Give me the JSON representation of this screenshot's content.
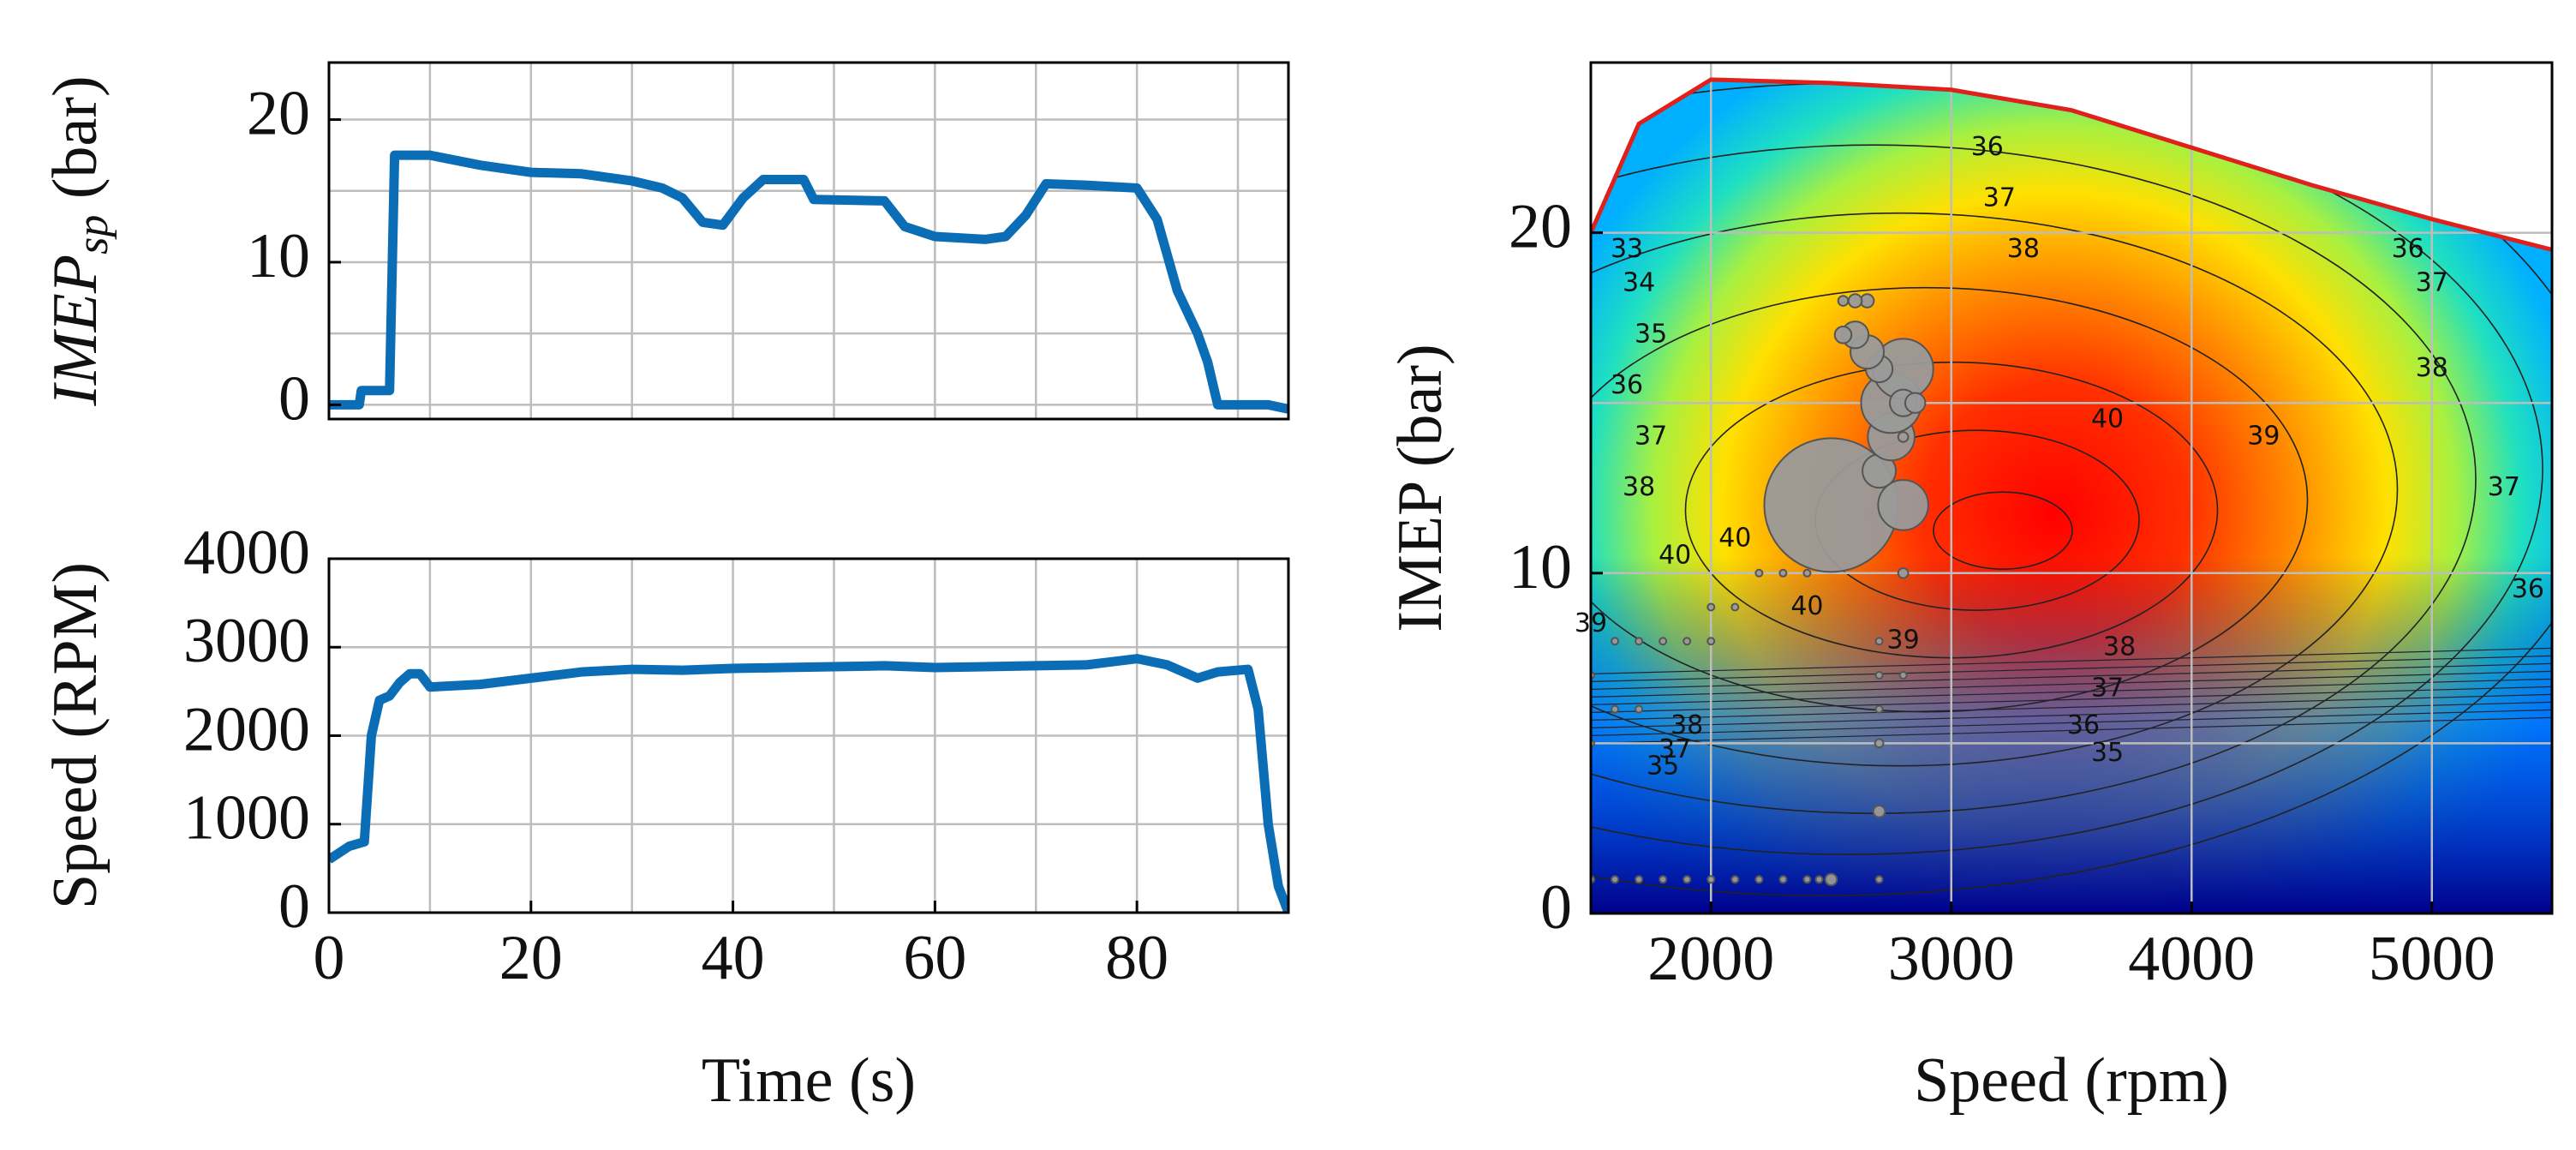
{
  "chart_data": [
    {
      "type": "line",
      "y_label": {
        "main": "IMEP",
        "sub": "sp",
        "unit": " (bar)"
      },
      "x": [
        0,
        3,
        3.2,
        6,
        6.5,
        10,
        15,
        20,
        25,
        30,
        33,
        35,
        37,
        39,
        41,
        43,
        47,
        48,
        55,
        57,
        60,
        65,
        67,
        69,
        71,
        75,
        80,
        82,
        84,
        86,
        87,
        88,
        93,
        95
      ],
      "values": [
        0,
        0,
        1,
        1,
        17.5,
        17.5,
        16.8,
        16.3,
        16.2,
        15.7,
        15.2,
        14.5,
        12.8,
        12.6,
        14.5,
        15.8,
        15.8,
        14.4,
        14.3,
        12.5,
        11.8,
        11.6,
        11.8,
        13.3,
        15.5,
        15.4,
        15.2,
        13,
        8,
        5,
        3,
        0,
        0,
        -0.3
      ],
      "color": "#0b6db5",
      "xlim": [
        0,
        95
      ],
      "ylim": [
        -1,
        24
      ],
      "yticks": [
        0,
        10,
        20
      ],
      "yminor": [
        5,
        15
      ],
      "xminor": [
        10,
        20,
        30,
        40,
        50,
        60,
        70,
        80,
        90
      ],
      "grid": true
    },
    {
      "type": "line",
      "y_label": "Speed (RPM)",
      "x_label": "Time (s)",
      "x": [
        0,
        2,
        3.5,
        4.2,
        5,
        6,
        7,
        8,
        9,
        10,
        15,
        20,
        25,
        30,
        35,
        40,
        45,
        50,
        55,
        60,
        65,
        70,
        75,
        80,
        83,
        86,
        88,
        91,
        92,
        93,
        94,
        95
      ],
      "values": [
        600,
        750,
        800,
        2000,
        2400,
        2450,
        2600,
        2700,
        2700,
        2550,
        2580,
        2650,
        2720,
        2750,
        2740,
        2760,
        2770,
        2780,
        2790,
        2770,
        2780,
        2790,
        2800,
        2870,
        2800,
        2650,
        2720,
        2750,
        2300,
        1000,
        300,
        0
      ],
      "color": "#0b6db5",
      "xlim": [
        0,
        95
      ],
      "ylim": [
        0,
        4000
      ],
      "yticks": [
        0,
        1000,
        2000,
        3000,
        4000
      ],
      "xticks": [
        0,
        20,
        40,
        60,
        80
      ],
      "xminor": [
        10,
        30,
        50,
        70,
        90
      ],
      "grid": true
    },
    {
      "type": "contour",
      "x_label": "Speed (rpm)",
      "y_label": "IMEP (bar)",
      "xlim": [
        1500,
        5500
      ],
      "ylim": [
        0,
        25
      ],
      "xticks": [
        2000,
        3000,
        4000,
        5000
      ],
      "yticks": [
        0,
        10,
        20
      ],
      "yminor": [
        5,
        15
      ],
      "grid": true,
      "boundary": {
        "color": "#e0201b",
        "x": [
          1500,
          1700,
          2000,
          2500,
          3000,
          3500,
          4000,
          4500,
          5000,
          5500
        ],
        "y": [
          20,
          23.2,
          24.5,
          24.4,
          24.2,
          23.6,
          22.5,
          21.4,
          20.4,
          19.5
        ]
      },
      "bubbles": {
        "color": "#9a9a9a",
        "x": [
          2500,
          2800,
          2700,
          2750,
          2750,
          2800,
          2800,
          2850,
          2700,
          2650,
          2600,
          2550,
          2550,
          2650,
          2600,
          2800,
          2800,
          2700,
          2700,
          2800,
          2700,
          2700,
          2700,
          2700,
          2500,
          2450,
          2400,
          2300,
          2200,
          2100,
          2000,
          1900,
          1800,
          1700,
          1600,
          1500,
          2000,
          1900,
          1800,
          1700,
          1600,
          1500,
          1600,
          1700,
          1500,
          2100,
          2000,
          2200,
          2300,
          2400
        ],
        "y": [
          12,
          12,
          13,
          14,
          15,
          16,
          15,
          15,
          16,
          16.5,
          17,
          17,
          18,
          18,
          18,
          14,
          10,
          8,
          7,
          7,
          6,
          5,
          3,
          1,
          1,
          1,
          1,
          1,
          1,
          1,
          1,
          1,
          1,
          1,
          1,
          1,
          8,
          8,
          8,
          8,
          8,
          7,
          6,
          6,
          5,
          9,
          9,
          10,
          10,
          10
        ],
        "size": [
          40,
          15,
          10,
          14,
          18,
          18,
          8,
          6,
          8,
          10,
          8,
          5,
          3,
          4,
          4,
          3,
          3,
          2,
          2,
          2,
          2,
          2.5,
          3.5,
          2,
          3.5,
          2,
          1,
          1,
          1,
          1,
          1,
          1,
          1,
          1,
          1,
          1,
          2,
          1.5,
          1.5,
          1.5,
          1.5,
          1.5,
          1.5,
          1.5,
          1.5,
          1.5,
          1.5,
          1.5,
          1.5,
          1
        ]
      },
      "contour_labels": {
        "x": [
          3150,
          3200,
          3300,
          3650,
          4300,
          4900,
          5000,
          5000,
          5300,
          5400,
          3700,
          3650,
          3550,
          3650,
          1650,
          1700,
          1750,
          1650,
          1750,
          1700,
          1850,
          1500,
          2100,
          2400,
          2800,
          1900,
          1850,
          1800
        ],
        "y": [
          22.5,
          21,
          19.5,
          14.5,
          14,
          19.5,
          18.5,
          16,
          12.5,
          9.5,
          7.8,
          6.6,
          5.5,
          4.7,
          19.5,
          18.5,
          17,
          15.5,
          14,
          12.5,
          10.5,
          8.5,
          11,
          9,
          8,
          5.5,
          4.8,
          4.3
        ],
        "values": [
          36,
          37,
          38,
          40,
          39,
          36,
          37,
          38,
          37,
          36,
          38,
          37,
          36,
          35,
          33,
          34,
          35,
          36,
          37,
          38,
          40,
          39,
          40,
          40,
          39,
          38,
          37,
          35
        ]
      }
    }
  ]
}
